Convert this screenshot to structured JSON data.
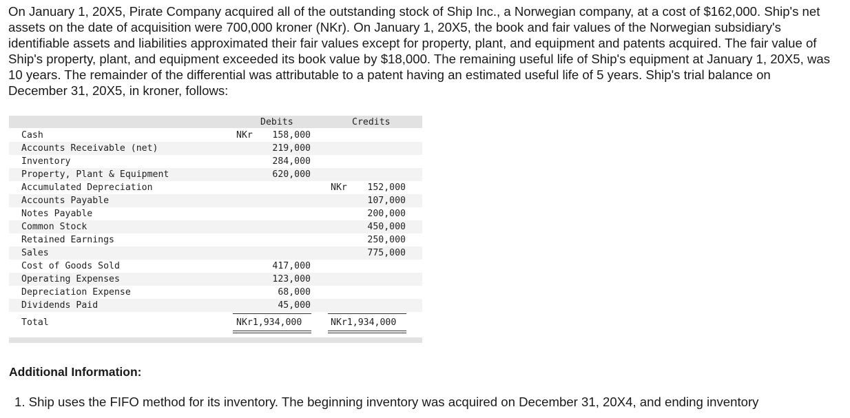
{
  "intro_text": "On January 1, 20X5, Pirate Company acquired all of the outstanding stock of Ship Inc., a Norwegian company, at a cost of $162,000. Ship's net assets on the date of acquisition were 700,000 kroner (NKr). On January 1, 20X5, the book and fair values of the Norwegian subsidiary's identifiable assets and liabilities approximated their fair values except for property, plant, and equipment and patents acquired. The fair value of Ship's property, plant, and equipment exceeded its book value by $18,000. The remaining useful life of Ship's equipment at January 1, 20X5, was 10 years. The remainder of the differential was attributable to a patent having an estimated useful life of 5 years. Ship's trial balance on December 31, 20X5, in kroner, follows:",
  "trial_balance": {
    "headers": {
      "debits": "Debits",
      "credits": "Credits"
    },
    "rows": [
      {
        "account": "Cash",
        "debit_currency": "NKr",
        "debit": "158,000",
        "credit_currency": "",
        "credit": ""
      },
      {
        "account": "Accounts Receivable (net)",
        "debit_currency": "",
        "debit": "219,000",
        "credit_currency": "",
        "credit": ""
      },
      {
        "account": "Inventory",
        "debit_currency": "",
        "debit": "284,000",
        "credit_currency": "",
        "credit": ""
      },
      {
        "account": "Property, Plant & Equipment",
        "debit_currency": "",
        "debit": "620,000",
        "credit_currency": "",
        "credit": ""
      },
      {
        "account": "Accumulated Depreciation",
        "debit_currency": "",
        "debit": "",
        "credit_currency": "NKr",
        "credit": "152,000"
      },
      {
        "account": "Accounts Payable",
        "debit_currency": "",
        "debit": "",
        "credit_currency": "",
        "credit": "107,000"
      },
      {
        "account": "Notes Payable",
        "debit_currency": "",
        "debit": "",
        "credit_currency": "",
        "credit": "200,000"
      },
      {
        "account": "Common Stock",
        "debit_currency": "",
        "debit": "",
        "credit_currency": "",
        "credit": "450,000"
      },
      {
        "account": "Retained Earnings",
        "debit_currency": "",
        "debit": "",
        "credit_currency": "",
        "credit": "250,000"
      },
      {
        "account": "Sales",
        "debit_currency": "",
        "debit": "",
        "credit_currency": "",
        "credit": "775,000"
      },
      {
        "account": "Cost of Goods Sold",
        "debit_currency": "",
        "debit": "417,000",
        "credit_currency": "",
        "credit": ""
      },
      {
        "account": "Operating Expenses",
        "debit_currency": "",
        "debit": "123,000",
        "credit_currency": "",
        "credit": ""
      },
      {
        "account": "Depreciation Expense",
        "debit_currency": "",
        "debit": "68,000",
        "credit_currency": "",
        "credit": ""
      },
      {
        "account": "Dividends Paid",
        "debit_currency": "",
        "debit": "45,000",
        "credit_currency": "",
        "credit": ""
      }
    ],
    "total": {
      "label": "Total",
      "debit": "NKr1,934,000",
      "credit": "NKr1,934,000"
    }
  },
  "additional_info": {
    "title": "Additional Information:",
    "item_1": "1. Ship uses the FIFO method for its inventory. The beginning inventory was acquired on December 31, 20X4, and ending inventory"
  }
}
